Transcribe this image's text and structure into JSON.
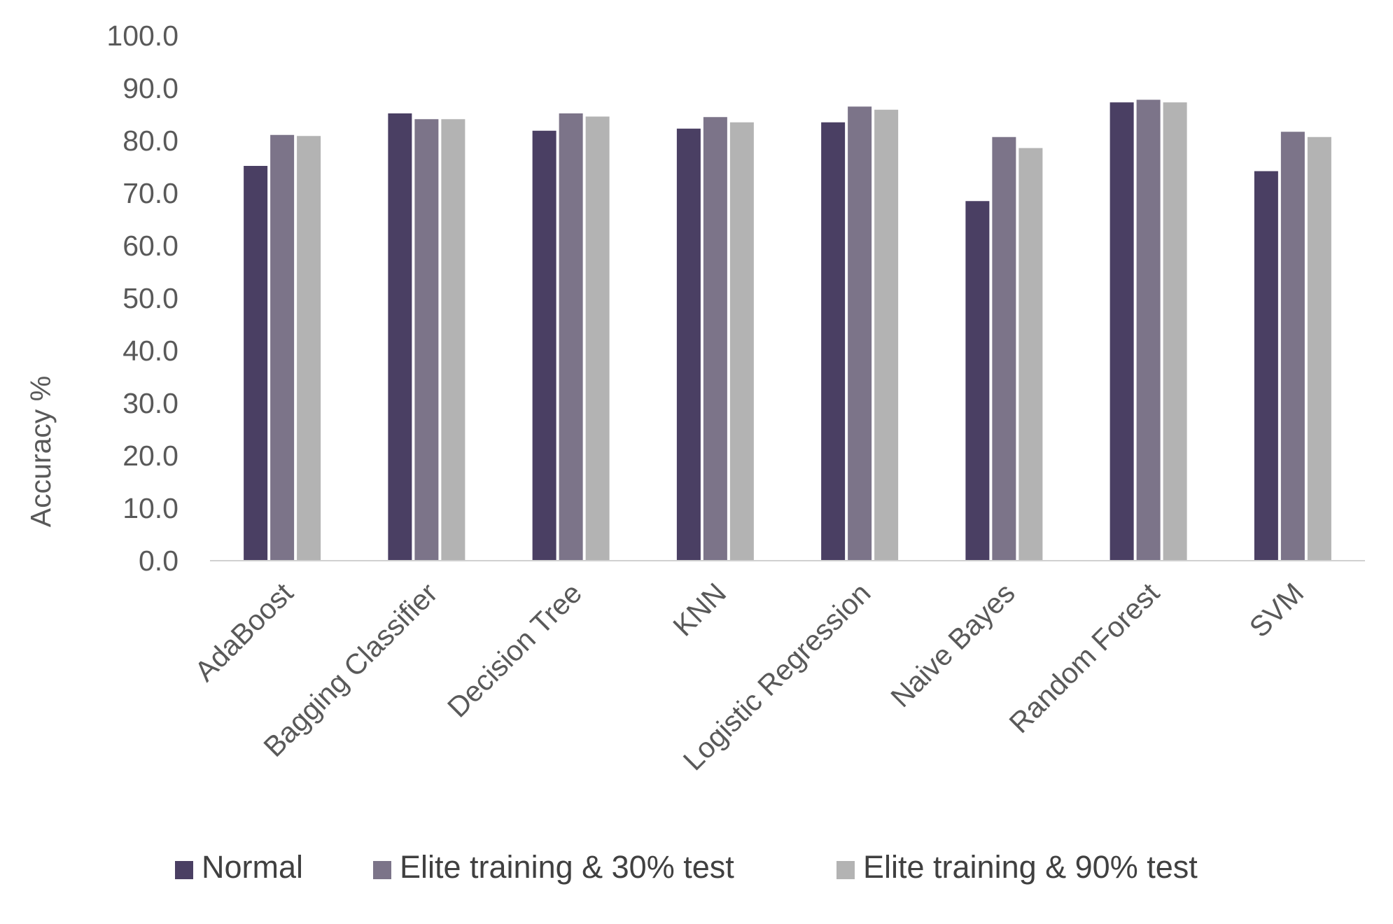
{
  "chart_data": {
    "type": "bar",
    "title": "",
    "xlabel": "",
    "ylabel": "Accuracy %",
    "ylim": [
      0,
      100
    ],
    "yticks": [
      "0.0",
      "10.0",
      "20.0",
      "30.0",
      "40.0",
      "50.0",
      "60.0",
      "70.0",
      "80.0",
      "90.0",
      "100.0"
    ],
    "grid": false,
    "legend_position": "bottom",
    "categories": [
      "AdaBoost",
      "Bagging Classifier",
      "Decision Tree",
      "KNN",
      "Logistic Regression",
      "Naive Bayes",
      "Random Forest",
      "SVM"
    ],
    "series": [
      {
        "name": "Normal",
        "color": "#4a3f63",
        "values": [
          75.2,
          85.2,
          81.9,
          82.3,
          83.5,
          68.5,
          87.3,
          74.2
        ]
      },
      {
        "name": "Elite training & 30% test",
        "color": "#7c7489",
        "values": [
          81.1,
          84.1,
          85.2,
          84.5,
          86.5,
          80.7,
          87.8,
          81.7
        ]
      },
      {
        "name": "Elite training & 90% test",
        "color": "#b3b3b3",
        "values": [
          80.9,
          84.1,
          84.6,
          83.5,
          85.9,
          78.6,
          87.3,
          80.7
        ]
      }
    ]
  }
}
